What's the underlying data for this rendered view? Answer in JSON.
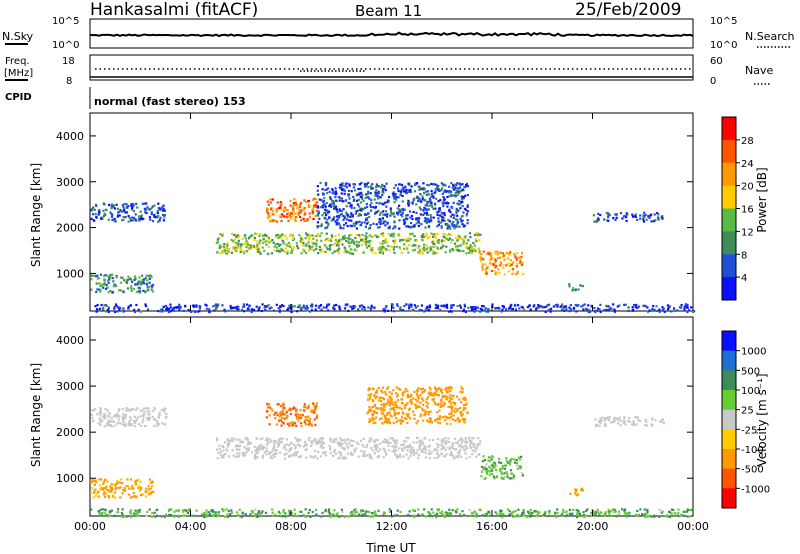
{
  "header": {
    "station": "Hankasalmi (fitACF)",
    "beam": "Beam 11",
    "date": "25/Feb/2009"
  },
  "top_panels": {
    "nsky_label": "N.Sky",
    "nsearch_label": "N.Search",
    "nsky_ticks": [
      "10^5",
      "10^0"
    ],
    "nsearch_ticks": [
      "10^5",
      "10^0"
    ],
    "freq_label_line1": "Freq.",
    "freq_label_line2": "[MHz]",
    "freq_ticks": [
      "18",
      "8"
    ],
    "nave_label": "Nave",
    "nave_ticks": [
      "60",
      "0"
    ],
    "cpid_label": "CPID",
    "cpid_text": "normal (fast stereo) 153"
  },
  "chart_data": [
    {
      "type": "heatmap",
      "name": "power",
      "x_range": [
        "00:00",
        "24:00"
      ],
      "y_range": [
        180,
        4500
      ],
      "ylabel": "Slant Range [km]",
      "yticks": [
        1000,
        2000,
        3000,
        4000
      ],
      "xticks": [
        "00:00",
        "04:00",
        "08:00",
        "12:00",
        "16:00",
        "20:00",
        "00:00"
      ],
      "colorbar_label": "Power [dB]",
      "colorbar_ticks": [
        28,
        24,
        20,
        16,
        12,
        8,
        4
      ],
      "colorbar_colors": [
        "#ff0000",
        "#ff5500",
        "#ff9900",
        "#ffcc00",
        "#55bb44",
        "#3d8c5a",
        "#1f4fd4",
        "#0a10ff"
      ],
      "regions": [
        {
          "t0": 0.0,
          "t1": 3.0,
          "r0": 2150,
          "r1": 2550,
          "value": 8
        },
        {
          "t0": 5.0,
          "t1": 15.5,
          "r0": 1450,
          "r1": 1900,
          "value": 16
        },
        {
          "t0": 7.0,
          "t1": 9.0,
          "r0": 2150,
          "r1": 2650,
          "value": 26
        },
        {
          "t0": 9.0,
          "t1": 15.0,
          "r0": 2000,
          "r1": 3000,
          "value": 8
        },
        {
          "t0": 15.5,
          "t1": 17.2,
          "r0": 1000,
          "r1": 1500,
          "value": 24
        },
        {
          "t0": 0.0,
          "t1": 2.5,
          "r0": 600,
          "r1": 1000,
          "value": 12
        },
        {
          "t0": 0.0,
          "t1": 24.0,
          "r0": 180,
          "r1": 350,
          "value": 6
        },
        {
          "t0": 19.0,
          "t1": 19.6,
          "r0": 650,
          "r1": 800,
          "value": 12
        },
        {
          "t0": 20.0,
          "t1": 22.8,
          "r0": 2150,
          "r1": 2350,
          "value": 8
        }
      ]
    },
    {
      "type": "heatmap",
      "name": "velocity",
      "x_range": [
        "00:00",
        "24:00"
      ],
      "y_range": [
        180,
        4500
      ],
      "ylabel": "Slant Range [km]",
      "yticks": [
        1000,
        2000,
        3000,
        4000
      ],
      "xticks": [
        "00:00",
        "04:00",
        "08:00",
        "12:00",
        "16:00",
        "20:00",
        "00:00"
      ],
      "xlabel": "Time UT",
      "colorbar_label": "Velocity [m s⁻¹]",
      "colorbar_ticks": [
        1000,
        500,
        100,
        25,
        -25,
        -100,
        -500,
        -1000
      ],
      "colorbar_colors": [
        "#0a10ff",
        "#1f6fd4",
        "#3d8c5a",
        "#66cc33",
        "#c8c8c8",
        "#ffcc00",
        "#ff9900",
        "#ff5500",
        "#ff0000"
      ],
      "regions": [
        {
          "t0": 0.0,
          "t1": 3.0,
          "r0": 2150,
          "r1": 2550,
          "value": 0
        },
        {
          "t0": 5.0,
          "t1": 15.5,
          "r0": 1450,
          "r1": 1900,
          "value": 0
        },
        {
          "t0": 7.0,
          "t1": 9.0,
          "r0": 2150,
          "r1": 2650,
          "value": -300
        },
        {
          "t0": 11.0,
          "t1": 15.0,
          "r0": 2200,
          "r1": 3000,
          "value": -150
        },
        {
          "t0": 15.5,
          "t1": 17.2,
          "r0": 1000,
          "r1": 1500,
          "value": 50
        },
        {
          "t0": 0.0,
          "t1": 2.5,
          "r0": 600,
          "r1": 1000,
          "value": -100
        },
        {
          "t0": 0.0,
          "t1": 24.0,
          "r0": 180,
          "r1": 350,
          "value": 60
        },
        {
          "t0": 19.0,
          "t1": 19.6,
          "r0": 650,
          "r1": 800,
          "value": -100
        },
        {
          "t0": 20.0,
          "t1": 22.8,
          "r0": 2150,
          "r1": 2350,
          "value": 0
        }
      ]
    }
  ]
}
